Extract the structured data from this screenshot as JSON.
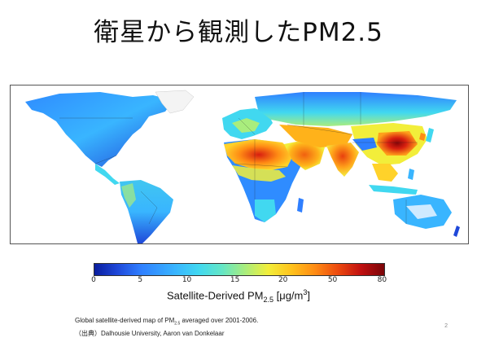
{
  "slide": {
    "title": "衛星から観測したPM2.5",
    "page_number": "2"
  },
  "colorbar": {
    "ticks": [
      "0",
      "5",
      "10",
      "15",
      "20",
      "50",
      "80"
    ],
    "label_main": "Satellite-Derived PM",
    "label_sub": "2.5",
    "label_unit_prefix": " [μg/m",
    "label_unit_sup": "3",
    "label_unit_suffix": "]"
  },
  "caption": {
    "line1_pre": "Global satellite-derived map of PM",
    "line1_sub": "2.5",
    "line1_post": " averaged over 2001-2006.",
    "line2": "（出典）Dalhousie University, Aaron van Donkelaar"
  },
  "colors": {
    "ocean": "#ffffff",
    "low": "#1f48d9",
    "mid": "#41d8f0",
    "high": "#ff8c14",
    "very_high": "#c01010",
    "border": "#222222"
  }
}
